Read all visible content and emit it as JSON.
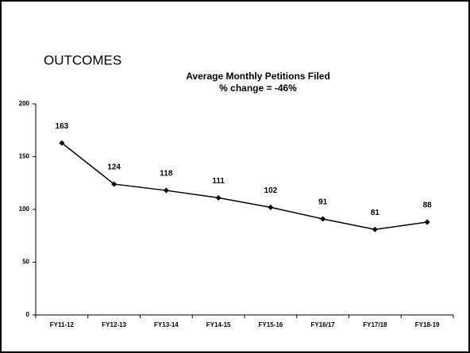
{
  "slide_title": "OUTCOMES",
  "chart_data": {
    "type": "line",
    "title": "Average Monthly Petitions Filed",
    "subtitle": "% change = -46%",
    "categories": [
      "FY11-12",
      "FY12-13",
      "FY13-14",
      "FY14-15",
      "FY15-16",
      "FY16/17",
      "FY17/18",
      "FY18-19"
    ],
    "values": [
      163,
      124,
      118,
      111,
      102,
      91,
      81,
      88
    ],
    "color": "#000000",
    "ylim": [
      0,
      200
    ],
    "yticks": [
      0,
      50,
      100,
      150,
      200
    ],
    "grid": false
  }
}
